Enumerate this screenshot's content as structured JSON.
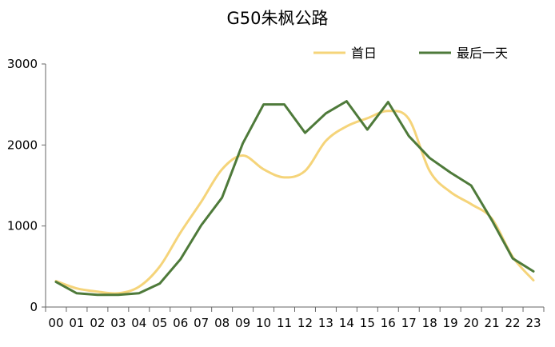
{
  "chart_data": {
    "type": "line",
    "title": "G50朱枫公路",
    "xlabel": "",
    "ylabel": "",
    "categories": [
      "00",
      "01",
      "02",
      "03",
      "04",
      "05",
      "06",
      "07",
      "08",
      "09",
      "10",
      "11",
      "12",
      "13",
      "14",
      "15",
      "16",
      "17",
      "18",
      "19",
      "20",
      "21",
      "22",
      "23"
    ],
    "ylim": [
      0,
      3000
    ],
    "yticks": [
      0,
      1000,
      2000,
      3000
    ],
    "grid": false,
    "legend_position": "top-right",
    "series": [
      {
        "name": "首日",
        "color": "#F5D47A",
        "smooth": true,
        "values": [
          320,
          230,
          190,
          170,
          250,
          500,
          920,
          1300,
          1700,
          1870,
          1700,
          1600,
          1680,
          2050,
          2230,
          2330,
          2420,
          2320,
          1680,
          1420,
          1270,
          1090,
          620,
          330
        ]
      },
      {
        "name": "最后一天",
        "color": "#4E7A3A",
        "smooth": false,
        "values": [
          310,
          170,
          150,
          150,
          170,
          290,
          590,
          1010,
          1350,
          2020,
          2500,
          2500,
          2150,
          2390,
          2540,
          2190,
          2530,
          2110,
          1840,
          1660,
          1500,
          1070,
          600,
          440
        ]
      }
    ]
  }
}
